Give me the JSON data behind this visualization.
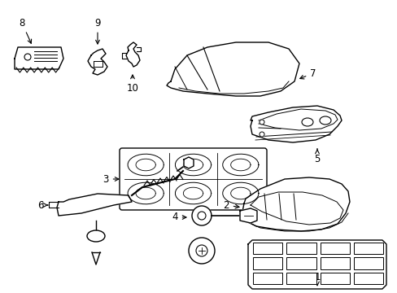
{
  "background_color": "#ffffff",
  "line_color": "#000000",
  "line_width": 1.0,
  "label_fontsize": 8.5,
  "fig_w": 4.89,
  "fig_h": 3.6,
  "dpi": 100
}
